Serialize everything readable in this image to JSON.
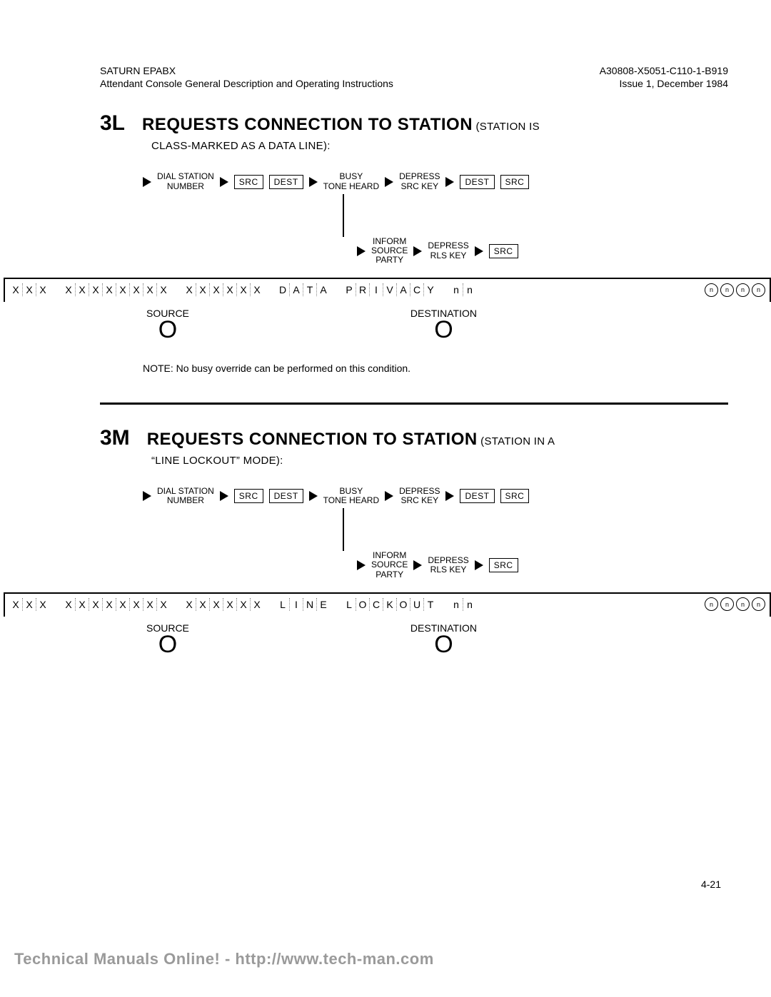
{
  "header": {
    "left_line1": "SATURN EPABX",
    "left_line2": "Attendant Console General Description and Operating Instructions",
    "right_line1": "A30808-X5051-C110-1-B919",
    "right_line2": "Issue 1, December 1984"
  },
  "section3L": {
    "code": "3L",
    "title": "REQUESTS CONNECTION TO STATION",
    "paren": "(STATION IS",
    "subtitle": "CLASS-MARKED AS A DATA LINE):",
    "flow": {
      "step1": "DIAL STATION\nNUMBER",
      "src": "SRC",
      "dest": "DEST",
      "step2": "BUSY\nTONE HEARD",
      "step3": "DEPRESS\nSRC KEY",
      "step4": "INFORM\nSOURCE\nPARTY",
      "step5": "DEPRESS\nRLS KEY"
    },
    "display": {
      "group1": [
        "X",
        "X",
        "X"
      ],
      "group2": [
        "X",
        "X",
        "X",
        "X",
        "X",
        "X",
        "X",
        "X"
      ],
      "group3": [
        "X",
        "X",
        "X",
        "X",
        "X",
        "X"
      ],
      "group4": [
        "D",
        "A",
        "T",
        "A"
      ],
      "group5": [
        "P",
        "R",
        "I",
        "V",
        "A",
        "C",
        "Y"
      ],
      "group6": [
        "n",
        "n"
      ],
      "leds": [
        "n",
        "n",
        "n",
        "n"
      ],
      "source_label": "SOURCE",
      "dest_label": "DESTINATION"
    },
    "note": "NOTE: No busy override can be performed on this condition."
  },
  "section3M": {
    "code": "3M",
    "title": "REQUESTS CONNECTION TO STATION",
    "paren": "(STATION IN A",
    "subtitle": "“LINE LOCKOUT” MODE):",
    "flow": {
      "step1": "DIAL STATION\nNUMBER",
      "src": "SRC",
      "dest": "DEST",
      "step2": "BUSY\nTONE HEARD",
      "step3": "DEPRESS\nSRC KEY",
      "step4": "INFORM\nSOURCE\nPARTY",
      "step5": "DEPRESS\nRLS KEY"
    },
    "display": {
      "group1": [
        "X",
        "X",
        "X"
      ],
      "group2": [
        "X",
        "X",
        "X",
        "X",
        "X",
        "X",
        "X",
        "X"
      ],
      "group3": [
        "X",
        "X",
        "X",
        "X",
        "X",
        "X"
      ],
      "group4": [
        "L",
        "I",
        "N",
        "E"
      ],
      "group5": [
        "L",
        "O",
        "C",
        "K",
        "O",
        "U",
        "T"
      ],
      "group6": [
        "n",
        "n"
      ],
      "leds": [
        "n",
        "n",
        "n",
        "n"
      ],
      "source_label": "SOURCE",
      "dest_label": "DESTINATION"
    }
  },
  "pagenum": "4-21",
  "footer": "Technical Manuals Online! - http://www.tech-man.com"
}
